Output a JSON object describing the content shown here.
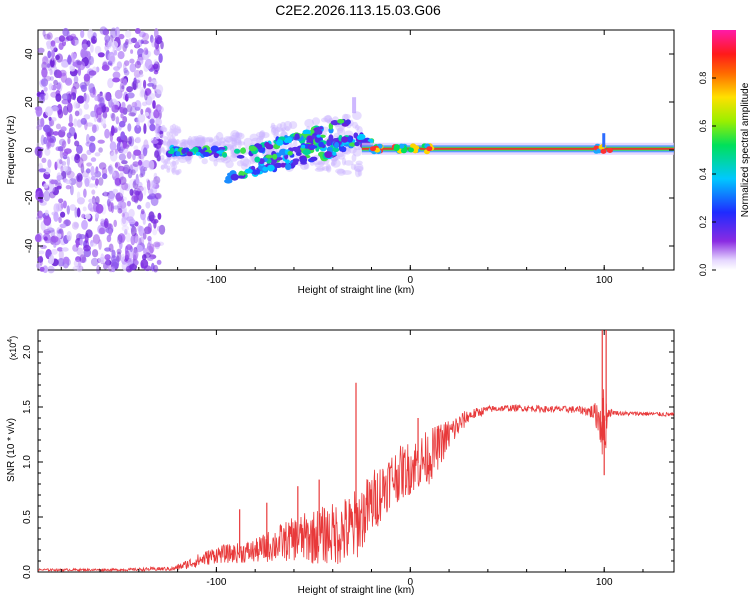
{
  "title": "C2E2.2026.113.15.03.G06",
  "chart_data": [
    {
      "type": "heatmap",
      "title": "C2E2.2026.113.15.03.G06",
      "xlabel": "Height of straight line (km)",
      "ylabel": "Frequency (Hz)",
      "xlim": [
        -192,
        136
      ],
      "ylim": [
        -50,
        50
      ],
      "x_ticks": [
        -100,
        0,
        100
      ],
      "y_ticks": [
        -40,
        -20,
        0,
        20,
        40
      ],
      "colorbar": {
        "label": "Normalized spectral amplitude",
        "range": [
          0.0,
          1.0
        ],
        "ticks": [
          "0.0",
          "0.2",
          "0.4",
          "0.6",
          "0.8"
        ],
        "colormap": "rainbow (purple-blue-cyan-green-yellow-red-magenta)"
      },
      "features": [
        {
          "name": "noise region",
          "x_range": [
            -192,
            -128
          ],
          "freq_range": [
            -50,
            50
          ],
          "amplitude": "0.1-0.3"
        },
        {
          "name": "diverging trace",
          "x_range": [
            -125,
            -25
          ],
          "freq_range": [
            -12,
            15
          ],
          "amplitude": "0.2-0.5"
        },
        {
          "name": "carrier line",
          "x_range": [
            -25,
            136
          ],
          "freq": 0.5,
          "amplitude": "0.5-1.0"
        }
      ]
    },
    {
      "type": "line",
      "xlabel": "Height of straight line (km)",
      "ylabel": "SNR (10 * v/v)",
      "y_multiplier": "(x10^4)",
      "xlim": [
        -192,
        136
      ],
      "ylim": [
        0,
        2.2
      ],
      "x_ticks": [
        -100,
        0,
        100
      ],
      "y_ticks": [
        0.0,
        0.5,
        1.0,
        1.5,
        2.0
      ],
      "y_tick_labels": [
        "0.0",
        "0.5",
        "1.0",
        "1.5",
        "2.0"
      ],
      "color": "#e8393a",
      "series": [
        {
          "name": "SNR",
          "envelope": {
            "x": [
              -192,
              -150,
              -122,
              -110,
              -100,
              -90,
              -80,
              -70,
              -60,
              -50,
              -40,
              -30,
              -25,
              -20,
              -10,
              0,
              10,
              20,
              30,
              40,
              50,
              60,
              70,
              80,
              90,
              95,
              98,
              100,
              102,
              105,
              110,
              120,
              136
            ],
            "center": [
              0.02,
              0.02,
              0.03,
              0.1,
              0.16,
              0.17,
              0.19,
              0.25,
              0.3,
              0.32,
              0.35,
              0.38,
              0.5,
              0.62,
              0.85,
              0.95,
              1.05,
              1.25,
              1.42,
              1.48,
              1.49,
              1.49,
              1.48,
              1.48,
              1.47,
              1.45,
              1.4,
              1.3,
              1.45,
              1.45,
              1.44,
              1.44,
              1.43
            ],
            "spread": [
              0.01,
              0.01,
              0.02,
              0.06,
              0.08,
              0.09,
              0.11,
              0.16,
              0.2,
              0.25,
              0.28,
              0.35,
              0.3,
              0.3,
              0.25,
              0.25,
              0.25,
              0.15,
              0.06,
              0.03,
              0.03,
              0.03,
              0.03,
              0.03,
              0.04,
              0.08,
              0.25,
              0.4,
              0.05,
              0.02,
              0.02,
              0.02,
              0.02
            ]
          },
          "spikes": [
            [
              -28,
              1.72
            ],
            [
              -47,
              0.84
            ],
            [
              -58,
              0.78
            ],
            [
              -74,
              0.63
            ],
            [
              -88,
              0.57
            ],
            [
              4,
              1.4
            ],
            [
              14,
              1.3
            ],
            [
              99,
              2.2
            ],
            [
              101,
              2.2
            ],
            [
              100,
              0.88
            ]
          ]
        }
      ]
    }
  ]
}
